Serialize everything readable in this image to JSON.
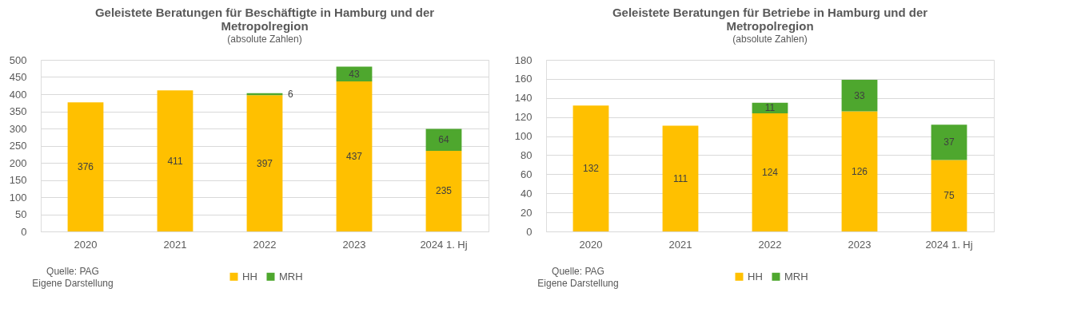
{
  "chart_data": [
    {
      "type": "bar",
      "title": "Geleistete Beratungen für Beschäftigte in Hamburg und der Metropolregion",
      "subtitle": "(absolute Zahlen)",
      "categories": [
        "2020",
        "2021",
        "2022",
        "2023",
        "2024 1. Hj"
      ],
      "stacked": true,
      "series": [
        {
          "name": "HH",
          "color": "#ffc000",
          "values": [
            376,
            411,
            397,
            437,
            235
          ]
        },
        {
          "name": "MRH",
          "color": "#4ea72e",
          "values": [
            null,
            null,
            6,
            43,
            64
          ]
        }
      ],
      "ylim": [
        0,
        500
      ],
      "yticks": [
        0,
        50,
        100,
        150,
        200,
        250,
        300,
        350,
        400,
        450,
        500
      ],
      "grid": "y",
      "legend": "bottom",
      "data_labels": true,
      "annotations": [
        "Quelle: PAG",
        "Eigene Darstellung"
      ]
    },
    {
      "type": "bar",
      "title": "Geleistete Beratungen für Betriebe in Hamburg und der Metropolregion",
      "subtitle": "(absolute Zahlen)",
      "categories": [
        "2020",
        "2021",
        "2022",
        "2023",
        "2024 1. Hj"
      ],
      "stacked": true,
      "series": [
        {
          "name": "HH",
          "color": "#ffc000",
          "values": [
            132,
            111,
            124,
            126,
            75
          ]
        },
        {
          "name": "MRH",
          "color": "#4ea72e",
          "values": [
            null,
            null,
            11,
            33,
            37
          ]
        }
      ],
      "ylim": [
        0,
        180
      ],
      "yticks": [
        0,
        20,
        40,
        60,
        80,
        100,
        120,
        140,
        160,
        180
      ],
      "grid": "y",
      "legend": "bottom",
      "data_labels": true,
      "annotations": [
        "Quelle: PAG",
        "Eigene Darstellung"
      ]
    }
  ]
}
